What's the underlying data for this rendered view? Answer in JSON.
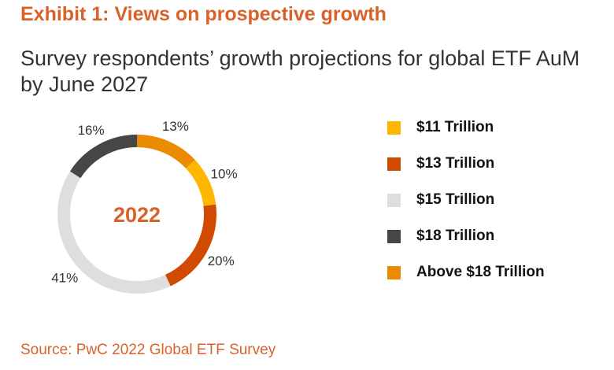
{
  "header": {
    "exhibit_title": "Exhibit 1: Views on prospective growth",
    "subtitle": "Survey respondents’ growth projections for global ETF AuM by June 2027"
  },
  "chart_data": {
    "type": "pie",
    "variant": "donut",
    "center_label": "2022",
    "legend_position": "right",
    "slices": [
      {
        "label": "$11 Trillion",
        "value": 10,
        "value_label": "10%",
        "color": "#ffb600"
      },
      {
        "label": "$13 Trillion",
        "value": 20,
        "value_label": "20%",
        "color": "#d04a02"
      },
      {
        "label": "$15 Trillion",
        "value": 41,
        "value_label": "41%",
        "color": "#dedede"
      },
      {
        "label": "$18 Trillion",
        "value": 16,
        "value_label": "16%",
        "color": "#464646"
      },
      {
        "label": "Above $18 Trillion",
        "value": 13,
        "value_label": "13%",
        "color": "#eb8c00"
      }
    ]
  },
  "footer": {
    "source": "Source: PwC 2022 Global ETF Survey"
  },
  "colors": {
    "accent": "#d9622b",
    "title_text": "#333333"
  }
}
